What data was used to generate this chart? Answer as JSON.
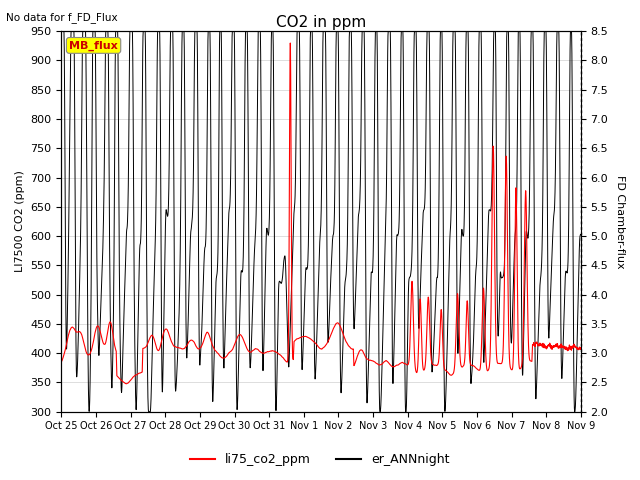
{
  "title": "CO2 in ppm",
  "top_left_text": "No data for f_FD_Flux",
  "ylabel_left": "LI7500 CO2 (ppm)",
  "ylabel_right": "FD Chamber-flux",
  "ylim_left": [
    300,
    950
  ],
  "ylim_right": [
    2.0,
    8.5
  ],
  "yticks_left": [
    300,
    350,
    400,
    450,
    500,
    550,
    600,
    650,
    700,
    750,
    800,
    850,
    900,
    950
  ],
  "yticks_right": [
    2.0,
    2.5,
    3.0,
    3.5,
    4.0,
    4.5,
    5.0,
    5.5,
    6.0,
    6.5,
    7.0,
    7.5,
    8.0,
    8.5
  ],
  "xtick_labels": [
    "Oct 25",
    "Oct 26",
    "Oct 27",
    "Oct 28",
    "Oct 29",
    "Oct 30",
    "Oct 31",
    "Nov 1",
    "Nov 2",
    "Nov 3",
    "Nov 4",
    "Nov 5",
    "Nov 6",
    "Nov 7",
    "Nov 8",
    "Nov 9"
  ],
  "line1_color": "#ff0000",
  "line1_label": "li75_co2_ppm",
  "line2_color": "#000000",
  "line2_label": "er_ANNnight",
  "mb_flux_box_color": "#ffff00",
  "mb_flux_text_color": "#cc0000",
  "background_color": "#ffffff",
  "grid_color": "#d8d8d8",
  "fig_width": 6.4,
  "fig_height": 4.8,
  "dpi": 100
}
